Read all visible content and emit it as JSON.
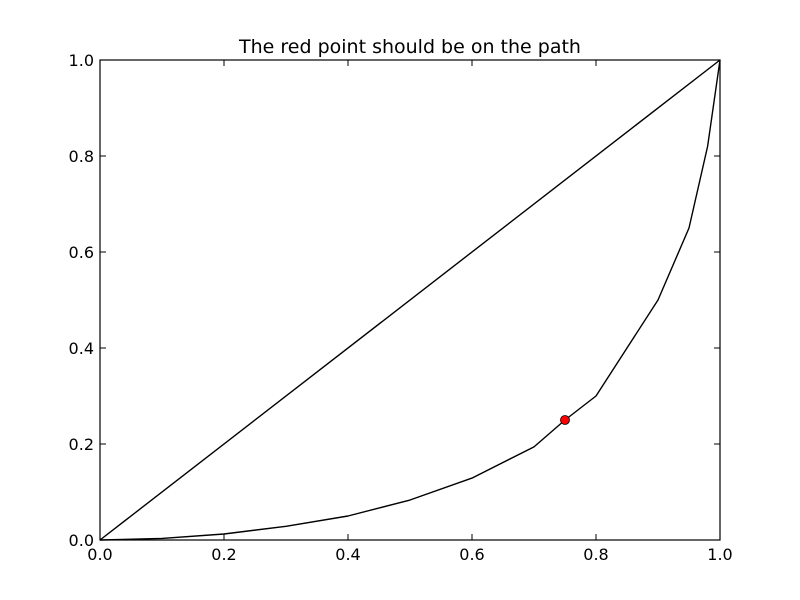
{
  "chart_data": {
    "type": "line",
    "title": "The red point should be on the path",
    "xlabel": "",
    "ylabel": "",
    "xlim": [
      0.0,
      1.0
    ],
    "ylim": [
      0.0,
      1.0
    ],
    "xticks": [
      "0.0",
      "0.2",
      "0.4",
      "0.6",
      "0.8",
      "1.0"
    ],
    "yticks": [
      "0.0",
      "0.2",
      "0.4",
      "0.6",
      "0.8",
      "1.0"
    ],
    "grid": false,
    "series": [
      {
        "x": [
          0.0,
          1.0
        ],
        "y": [
          0.0,
          1.0
        ],
        "color": "#000000"
      },
      {
        "x": [
          0.0,
          0.1,
          0.2,
          0.3,
          0.4,
          0.5,
          0.6,
          0.7,
          0.75,
          0.8,
          0.85,
          0.9,
          0.95,
          0.98,
          1.0
        ],
        "y": [
          0.0,
          0.0033,
          0.0125,
          0.0286,
          0.05,
          0.0833,
          0.129,
          0.194,
          0.25,
          0.3,
          0.4,
          0.5,
          0.65,
          0.82,
          1.0
        ],
        "color": "#000000"
      }
    ],
    "points": [
      {
        "x": 0.75,
        "y": 0.25,
        "color": "#ff0000"
      }
    ]
  }
}
